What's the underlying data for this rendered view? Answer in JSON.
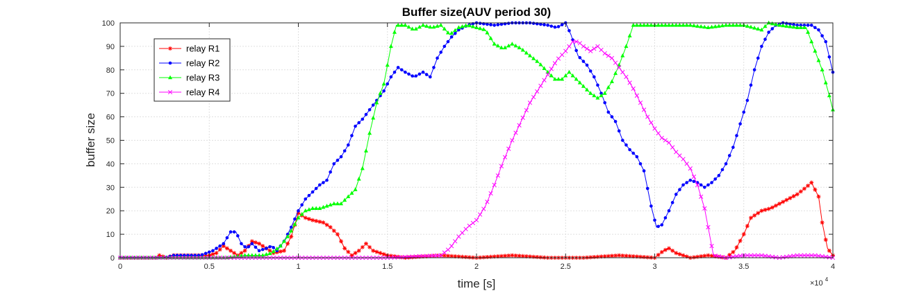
{
  "chart_data": {
    "type": "line",
    "title": "Buffer size(AUV period 30)",
    "xlabel": "time [s]",
    "ylabel": "buffer size",
    "x_exponent_label": "×10",
    "x_exponent_power": "4",
    "xlim": [
      0,
      40000
    ],
    "ylim": [
      0,
      100
    ],
    "x_ticks": [
      0,
      5000,
      10000,
      15000,
      20000,
      25000,
      30000,
      35000,
      40000
    ],
    "x_tick_labels": [
      "0",
      "0.5",
      "1",
      "1.5",
      "2",
      "2.5",
      "3",
      "3.5",
      "4"
    ],
    "y_ticks": [
      0,
      10,
      20,
      30,
      40,
      50,
      60,
      70,
      80,
      90,
      100
    ],
    "y_tick_labels": [
      "0",
      "10",
      "20",
      "30",
      "40",
      "50",
      "60",
      "70",
      "80",
      "90",
      "100"
    ],
    "grid": true,
    "legend_position": "top-left",
    "series": [
      {
        "name": "relay R1",
        "color": "#ff0000",
        "marker": "star",
        "points": [
          [
            0,
            0
          ],
          [
            2000,
            0
          ],
          [
            2200,
            1
          ],
          [
            2600,
            0
          ],
          [
            3000,
            1
          ],
          [
            3500,
            1
          ],
          [
            4500,
            1
          ],
          [
            5000,
            1
          ],
          [
            5400,
            2
          ],
          [
            5800,
            5
          ],
          [
            6200,
            3
          ],
          [
            6600,
            1
          ],
          [
            7000,
            3
          ],
          [
            7400,
            7
          ],
          [
            7800,
            6
          ],
          [
            8200,
            4
          ],
          [
            8600,
            2
          ],
          [
            9200,
            3
          ],
          [
            9600,
            9
          ],
          [
            10000,
            19
          ],
          [
            10400,
            17
          ],
          [
            10800,
            16
          ],
          [
            11400,
            15
          ],
          [
            11800,
            13
          ],
          [
            12200,
            10
          ],
          [
            12600,
            4
          ],
          [
            13000,
            1
          ],
          [
            13400,
            3
          ],
          [
            13800,
            6
          ],
          [
            14200,
            3
          ],
          [
            15000,
            1
          ],
          [
            16000,
            0
          ],
          [
            18000,
            1
          ],
          [
            20000,
            0
          ],
          [
            22000,
            1
          ],
          [
            24000,
            0
          ],
          [
            26000,
            0
          ],
          [
            28000,
            1
          ],
          [
            30000,
            0
          ],
          [
            30500,
            3
          ],
          [
            30800,
            4
          ],
          [
            31200,
            2
          ],
          [
            32000,
            0
          ],
          [
            33000,
            1
          ],
          [
            34000,
            0
          ],
          [
            34500,
            3
          ],
          [
            35000,
            10
          ],
          [
            35400,
            17
          ],
          [
            36000,
            20
          ],
          [
            36500,
            21
          ],
          [
            37000,
            23
          ],
          [
            37500,
            25
          ],
          [
            38000,
            27
          ],
          [
            38500,
            30
          ],
          [
            38800,
            32
          ],
          [
            39200,
            26
          ],
          [
            39400,
            15
          ],
          [
            39700,
            4
          ],
          [
            40000,
            1
          ]
        ]
      },
      {
        "name": "relay R2",
        "color": "#0000ff",
        "marker": "point",
        "points": [
          [
            0,
            0
          ],
          [
            2500,
            0
          ],
          [
            3000,
            1
          ],
          [
            4500,
            1
          ],
          [
            5200,
            3
          ],
          [
            5800,
            6
          ],
          [
            6200,
            11
          ],
          [
            6500,
            11
          ],
          [
            6800,
            6
          ],
          [
            7100,
            4
          ],
          [
            7400,
            6
          ],
          [
            7800,
            3
          ],
          [
            8200,
            4
          ],
          [
            8500,
            5
          ],
          [
            8800,
            3
          ],
          [
            9200,
            7
          ],
          [
            9600,
            13
          ],
          [
            10000,
            20
          ],
          [
            10400,
            25
          ],
          [
            10800,
            28
          ],
          [
            11200,
            31
          ],
          [
            11600,
            33
          ],
          [
            12000,
            40
          ],
          [
            12400,
            43
          ],
          [
            12800,
            48
          ],
          [
            13200,
            56
          ],
          [
            13600,
            59
          ],
          [
            14000,
            63
          ],
          [
            14400,
            67
          ],
          [
            14800,
            71
          ],
          [
            15200,
            77
          ],
          [
            15600,
            81
          ],
          [
            16000,
            79
          ],
          [
            16500,
            77
          ],
          [
            17000,
            79
          ],
          [
            17400,
            77
          ],
          [
            17800,
            85
          ],
          [
            18200,
            90
          ],
          [
            18600,
            94
          ],
          [
            19000,
            97
          ],
          [
            19500,
            99
          ],
          [
            20000,
            100
          ],
          [
            21000,
            99
          ],
          [
            22000,
            100
          ],
          [
            23000,
            100
          ],
          [
            24000,
            99
          ],
          [
            24500,
            98
          ],
          [
            25000,
            100
          ],
          [
            25300,
            95
          ],
          [
            25700,
            86
          ],
          [
            26200,
            82
          ],
          [
            26600,
            77
          ],
          [
            27000,
            70
          ],
          [
            27400,
            62
          ],
          [
            27800,
            58
          ],
          [
            28200,
            50
          ],
          [
            28600,
            46
          ],
          [
            29000,
            43
          ],
          [
            29400,
            37
          ],
          [
            29800,
            22
          ],
          [
            30100,
            13
          ],
          [
            30400,
            14
          ],
          [
            30800,
            20
          ],
          [
            31200,
            27
          ],
          [
            31600,
            31
          ],
          [
            32000,
            33
          ],
          [
            32400,
            32
          ],
          [
            32800,
            30
          ],
          [
            33200,
            32
          ],
          [
            33600,
            35
          ],
          [
            34000,
            40
          ],
          [
            34400,
            47
          ],
          [
            34800,
            57
          ],
          [
            35200,
            67
          ],
          [
            35600,
            80
          ],
          [
            36000,
            90
          ],
          [
            36400,
            96
          ],
          [
            36800,
            99
          ],
          [
            37200,
            100
          ],
          [
            38000,
            99
          ],
          [
            38800,
            99
          ],
          [
            39200,
            97
          ],
          [
            39600,
            92
          ],
          [
            40000,
            79
          ]
        ]
      },
      {
        "name": "relay R3",
        "color": "#00ff00",
        "marker": "triangle",
        "points": [
          [
            0,
            0
          ],
          [
            2000,
            0
          ],
          [
            4000,
            0
          ],
          [
            5000,
            0
          ],
          [
            6000,
            0
          ],
          [
            7000,
            1
          ],
          [
            8000,
            1
          ],
          [
            8500,
            2
          ],
          [
            9000,
            5
          ],
          [
            9500,
            10
          ],
          [
            10000,
            17
          ],
          [
            10400,
            20
          ],
          [
            10800,
            21
          ],
          [
            11200,
            21
          ],
          [
            11600,
            22
          ],
          [
            12000,
            23
          ],
          [
            12400,
            23
          ],
          [
            12800,
            26
          ],
          [
            13200,
            29
          ],
          [
            13600,
            38
          ],
          [
            14000,
            53
          ],
          [
            14400,
            66
          ],
          [
            14800,
            74
          ],
          [
            15200,
            90
          ],
          [
            15500,
            99
          ],
          [
            16000,
            99
          ],
          [
            16500,
            97
          ],
          [
            17000,
            99
          ],
          [
            17500,
            98
          ],
          [
            18000,
            99
          ],
          [
            18500,
            95
          ],
          [
            19000,
            98
          ],
          [
            19500,
            99
          ],
          [
            20000,
            98
          ],
          [
            20500,
            97
          ],
          [
            21000,
            91
          ],
          [
            21500,
            89
          ],
          [
            22000,
            91
          ],
          [
            22500,
            89
          ],
          [
            23000,
            86
          ],
          [
            23500,
            83
          ],
          [
            24000,
            79
          ],
          [
            24400,
            76
          ],
          [
            24800,
            76
          ],
          [
            25200,
            79
          ],
          [
            25600,
            76
          ],
          [
            26000,
            73
          ],
          [
            26400,
            70
          ],
          [
            26800,
            68
          ],
          [
            27200,
            70
          ],
          [
            27600,
            75
          ],
          [
            28000,
            82
          ],
          [
            28400,
            90
          ],
          [
            28800,
            99
          ],
          [
            29500,
            99
          ],
          [
            30000,
            99
          ],
          [
            31000,
            99
          ],
          [
            32000,
            99
          ],
          [
            33000,
            98
          ],
          [
            34000,
            99
          ],
          [
            35000,
            99
          ],
          [
            36000,
            97
          ],
          [
            36400,
            100
          ],
          [
            37000,
            99
          ],
          [
            38000,
            98
          ],
          [
            38500,
            98
          ],
          [
            39000,
            88
          ],
          [
            39400,
            80
          ],
          [
            39800,
            69
          ],
          [
            40000,
            63
          ]
        ]
      },
      {
        "name": "relay R4",
        "color": "#ff00ff",
        "marker": "x",
        "points": [
          [
            0,
            0
          ],
          [
            5000,
            0
          ],
          [
            10000,
            0
          ],
          [
            15000,
            0
          ],
          [
            18000,
            1
          ],
          [
            18500,
            4
          ],
          [
            19000,
            9
          ],
          [
            19500,
            13
          ],
          [
            20000,
            16
          ],
          [
            20500,
            22
          ],
          [
            21000,
            31
          ],
          [
            21500,
            41
          ],
          [
            22000,
            50
          ],
          [
            22500,
            58
          ],
          [
            23000,
            66
          ],
          [
            23500,
            72
          ],
          [
            24000,
            78
          ],
          [
            24500,
            84
          ],
          [
            25000,
            88
          ],
          [
            25400,
            92
          ],
          [
            25700,
            92
          ],
          [
            26000,
            90
          ],
          [
            26400,
            88
          ],
          [
            26800,
            90
          ],
          [
            27200,
            87
          ],
          [
            27600,
            85
          ],
          [
            28000,
            81
          ],
          [
            28400,
            77
          ],
          [
            28800,
            72
          ],
          [
            29200,
            66
          ],
          [
            29600,
            60
          ],
          [
            30000,
            55
          ],
          [
            30400,
            51
          ],
          [
            30800,
            49
          ],
          [
            31200,
            45
          ],
          [
            31600,
            42
          ],
          [
            32000,
            38
          ],
          [
            32400,
            31
          ],
          [
            32800,
            21
          ],
          [
            33100,
            9
          ],
          [
            33300,
            1
          ],
          [
            34000,
            0
          ],
          [
            35000,
            1
          ],
          [
            36000,
            1
          ],
          [
            37000,
            0
          ],
          [
            38000,
            1
          ],
          [
            39000,
            1
          ],
          [
            40000,
            0
          ]
        ]
      }
    ]
  }
}
